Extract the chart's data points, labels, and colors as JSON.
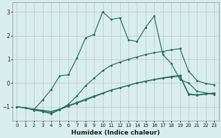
{
  "title": "",
  "xlabel": "Humidex (Indice chaleur)",
  "ylabel": "",
  "bg_color": "#d8eeec",
  "line_color": "#2a6e60",
  "grid_color": "#c0c8cc",
  "xlim": [
    -0.5,
    23.5
  ],
  "ylim": [
    -1.6,
    3.4
  ],
  "yticks": [
    -1,
    0,
    1,
    2,
    3
  ],
  "xticks": [
    0,
    1,
    2,
    3,
    4,
    5,
    6,
    7,
    8,
    9,
    10,
    11,
    12,
    13,
    14,
    15,
    16,
    17,
    18,
    19,
    20,
    21,
    22,
    23
  ],
  "lines": [
    {
      "x": [
        0,
        1,
        2,
        3,
        4,
        5,
        6,
        7,
        8,
        9,
        10,
        11,
        12,
        13,
        14,
        15,
        16,
        17,
        18,
        19,
        20,
        21,
        22,
        23
      ],
      "y": [
        -1.0,
        -1.05,
        -1.1,
        -1.15,
        -1.2,
        -1.1,
        -0.95,
        -0.82,
        -0.68,
        -0.55,
        -0.42,
        -0.3,
        -0.2,
        -0.1,
        0.0,
        0.08,
        0.15,
        0.22,
        0.28,
        0.32,
        -0.45,
        -0.5,
        -0.45,
        -0.42
      ]
    },
    {
      "x": [
        0,
        1,
        2,
        3,
        4,
        5,
        6,
        7,
        8,
        9,
        10,
        11,
        12,
        13,
        14,
        15,
        16,
        17,
        18,
        19,
        20,
        21,
        22,
        23
      ],
      "y": [
        -1.0,
        -1.05,
        -1.12,
        -1.18,
        -1.25,
        -1.12,
        -0.98,
        -0.85,
        -0.72,
        -0.58,
        -0.44,
        -0.3,
        -0.2,
        -0.1,
        0.0,
        0.07,
        0.14,
        0.2,
        0.25,
        0.28,
        -0.48,
        -0.52,
        -0.47,
        -0.44
      ]
    },
    {
      "x": [
        0,
        1,
        2,
        3,
        4,
        5,
        6,
        7,
        8,
        9,
        10,
        11,
        12,
        13,
        14,
        15,
        16,
        17,
        18,
        19,
        20,
        21,
        22,
        23
      ],
      "y": [
        -1.0,
        -1.05,
        -1.15,
        -1.2,
        -1.3,
        -1.12,
        -0.9,
        -0.55,
        -0.12,
        0.2,
        0.52,
        0.75,
        0.88,
        1.0,
        1.1,
        1.2,
        1.28,
        1.33,
        1.4,
        1.45,
        0.5,
        0.1,
        -0.02,
        -0.08
      ]
    },
    {
      "x": [
        1,
        2,
        3,
        4,
        5,
        6,
        7,
        8,
        9,
        10,
        11,
        12,
        13,
        14,
        15,
        16,
        17,
        18,
        19,
        20,
        21,
        22,
        23
      ],
      "y": [
        -1.05,
        -1.12,
        -0.72,
        -0.28,
        0.3,
        0.35,
        1.05,
        1.9,
        2.05,
        3.0,
        2.68,
        2.75,
        1.82,
        1.75,
        2.35,
        2.82,
        1.2,
        0.82,
        0.15,
        0.0,
        -0.35,
        -0.42,
        -0.48
      ]
    }
  ]
}
